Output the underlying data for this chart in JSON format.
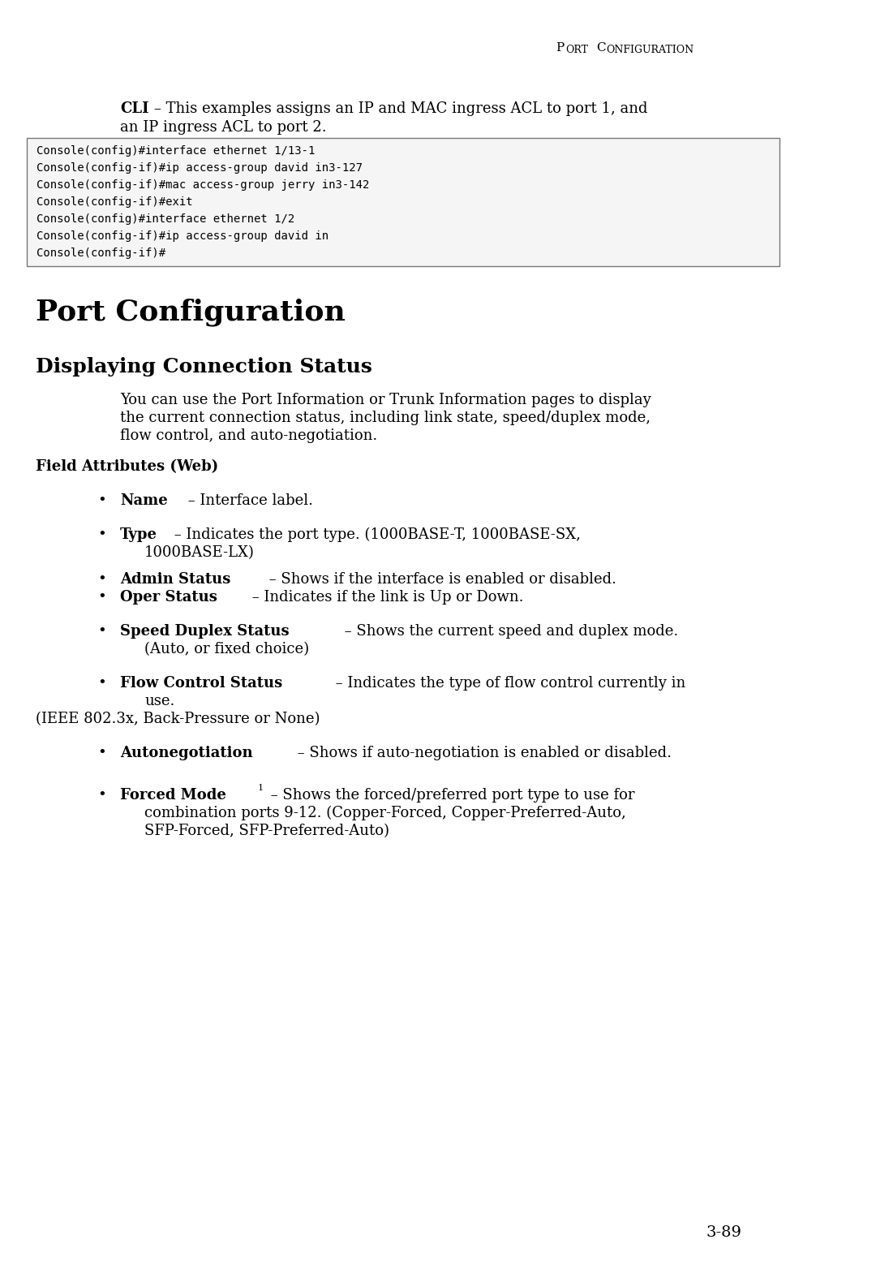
{
  "page_bg": "#ffffff",
  "code_lines": [
    "Console(config)#interface ethernet 1/13-1",
    "Console(config-if)#ip access-group david in3-127",
    "Console(config-if)#mac access-group jerry in3-142",
    "Console(config-if)#exit",
    "Console(config)#interface ethernet 1/2",
    "Console(config-if)#ip access-group david in",
    "Console(config-if)#"
  ],
  "page_number": "3-89"
}
